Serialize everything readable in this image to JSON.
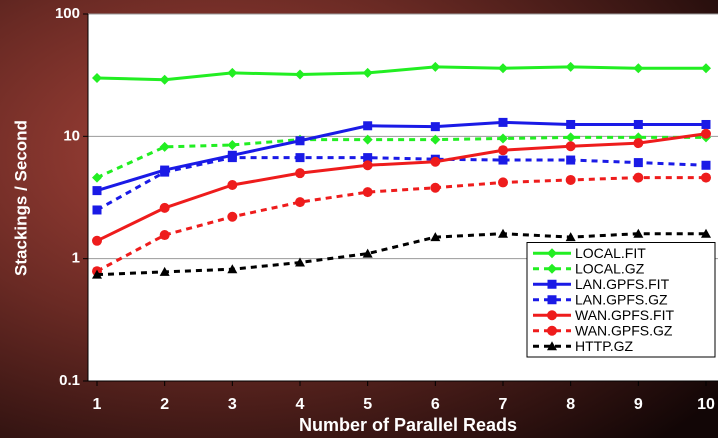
{
  "chart_data": {
    "type": "line",
    "x_label": "Number of Parallel Reads",
    "y_label": "Stackings / Second",
    "x": [
      1,
      2,
      3,
      4,
      5,
      6,
      7,
      8,
      9,
      10
    ],
    "xlim": [
      1,
      10
    ],
    "xticks": [
      1,
      2,
      3,
      4,
      5,
      6,
      7,
      8,
      9,
      10
    ],
    "ylim": [
      0.1,
      100
    ],
    "yticks": [
      0.1,
      1,
      10,
      100
    ],
    "log_y": true,
    "grid": true,
    "legend_position": "lower-right",
    "series": [
      {
        "name": "LOCAL.FIT",
        "color": "#22ee22",
        "marker": "diamond",
        "dashed": false,
        "values": [
          30,
          29,
          33,
          32,
          33,
          37,
          36,
          37,
          36,
          36
        ]
      },
      {
        "name": "LOCAL.GZ",
        "color": "#22ee22",
        "marker": "diamond",
        "dashed": true,
        "values": [
          4.6,
          8.2,
          8.5,
          9.4,
          9.4,
          9.4,
          9.6,
          9.8,
          9.8,
          9.8
        ]
      },
      {
        "name": "LAN.GPFS.FIT",
        "color": "#1a1ae6",
        "marker": "square",
        "dashed": false,
        "values": [
          3.6,
          5.3,
          7.0,
          9.2,
          12.2,
          12,
          13,
          12.5,
          12.5,
          12.5
        ]
      },
      {
        "name": "LAN.GPFS.GZ",
        "color": "#1a1ae6",
        "marker": "square",
        "dashed": true,
        "values": [
          2.5,
          5.1,
          6.7,
          6.7,
          6.7,
          6.5,
          6.4,
          6.4,
          6.1,
          5.8
        ]
      },
      {
        "name": "WAN.GPFS.FIT",
        "color": "#ee1c1c",
        "marker": "circle",
        "dashed": false,
        "values": [
          1.4,
          2.6,
          4.0,
          5.0,
          5.8,
          6.2,
          7.7,
          8.3,
          8.8,
          10.5
        ]
      },
      {
        "name": "WAN.GPFS.GZ",
        "color": "#ee1c1c",
        "marker": "circle",
        "dashed": true,
        "values": [
          0.79,
          1.56,
          2.2,
          2.9,
          3.5,
          3.8,
          4.2,
          4.4,
          4.6,
          4.6
        ]
      },
      {
        "name": "HTTP.GZ",
        "color": "#000000",
        "marker": "triangle",
        "dashed": true,
        "values": [
          0.74,
          0.78,
          0.82,
          0.93,
          1.1,
          1.5,
          1.6,
          1.5,
          1.6,
          1.6
        ]
      }
    ]
  }
}
